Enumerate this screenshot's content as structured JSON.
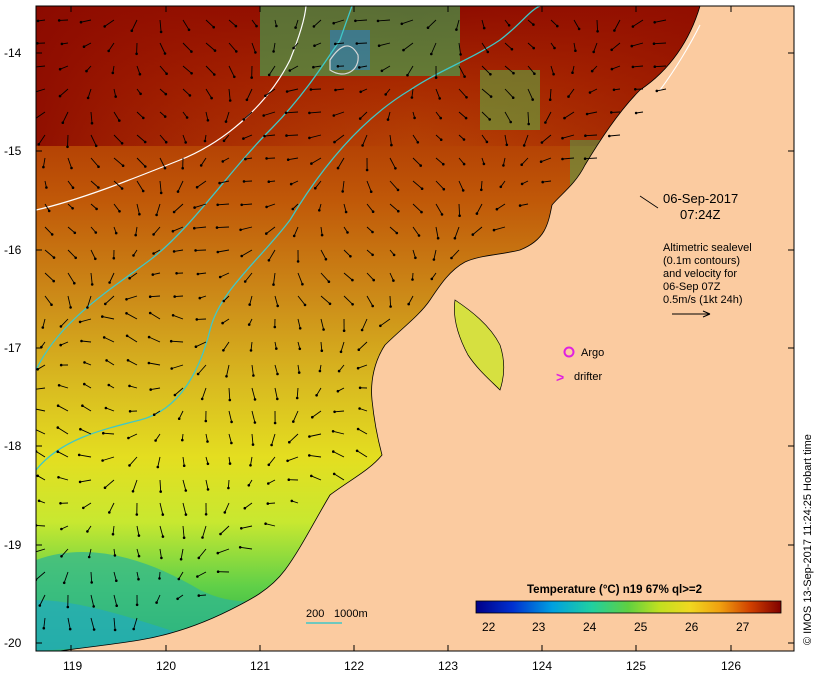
{
  "map": {
    "lat_ticks": [
      "-14",
      "-15",
      "-16",
      "-17",
      "-18",
      "-19",
      "-20"
    ],
    "lon_ticks": [
      "119",
      "120",
      "121",
      "122",
      "123",
      "124",
      "125",
      "126"
    ],
    "lon_range": [
      118.65,
      126.7
    ],
    "lat_range": [
      -13.65,
      -20.1
    ]
  },
  "annotations": {
    "date": "06-Sep-2017",
    "time": "07:24Z",
    "altimetry_lines": [
      "Altimetric sealevel",
      "(0.1m contours)",
      "and velocity for",
      "06-Sep 07Z",
      "0.5m/s (1kt 24h)"
    ],
    "argo_label": "Argo",
    "drifter_label": "drifter",
    "drifter_glyph": ">",
    "depth_labels": [
      "200",
      "1000m"
    ],
    "credit": "© IMOS 13-Sep-2017 11:24:25 Hobart time"
  },
  "colorbar": {
    "title": "Temperature (°C) n19 67% ql>=2",
    "ticks": [
      "22",
      "23",
      "24",
      "25",
      "26",
      "27"
    ],
    "range": [
      21.6,
      27.7
    ]
  },
  "colors": {
    "land": "#fbcba0",
    "contour_200": "#3fc8c8",
    "contour_1000": "#ffffff",
    "argo": "#e020e0",
    "drifter": "#e020e0"
  }
}
